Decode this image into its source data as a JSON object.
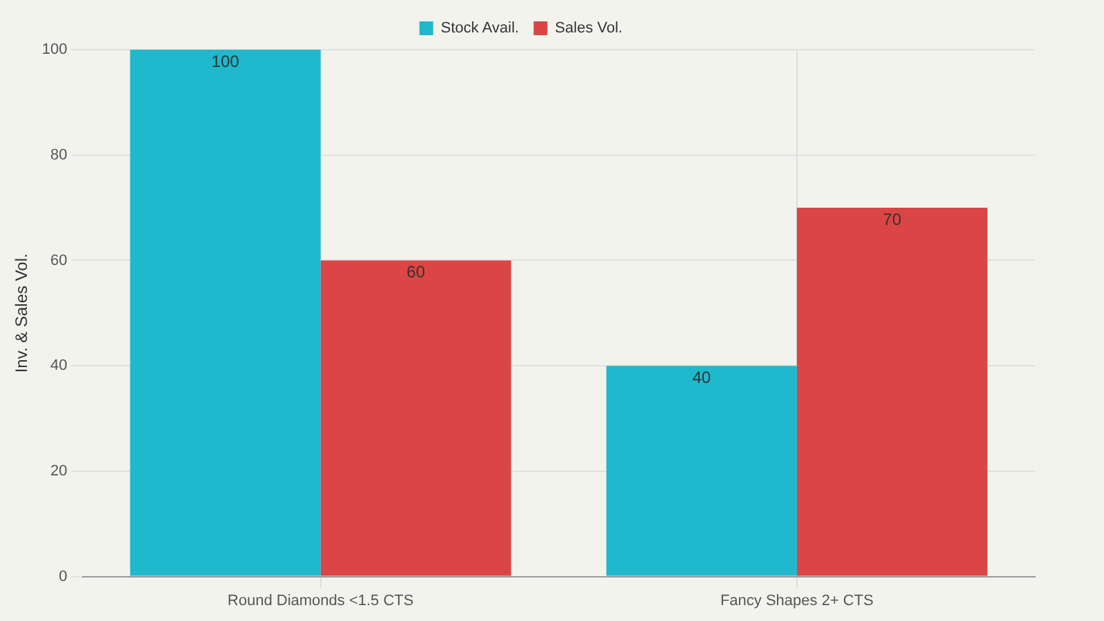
{
  "chart_data": {
    "type": "bar",
    "ylabel": "Inv. & Sales Vol.",
    "categories": [
      "Round Diamonds <1.5 CTS",
      "Fancy Shapes 2+ CTS"
    ],
    "series": [
      {
        "name": "Stock Avail.",
        "color": "#1fb8cd",
        "values": [
          100,
          40
        ]
      },
      {
        "name": "Sales Vol.",
        "color": "#db4545",
        "values": [
          60,
          70
        ]
      }
    ],
    "ylim": [
      0,
      100
    ],
    "yticks": [
      0,
      20,
      40,
      60,
      80,
      100
    ],
    "grid": true,
    "legend": "top",
    "data_labels": true
  }
}
